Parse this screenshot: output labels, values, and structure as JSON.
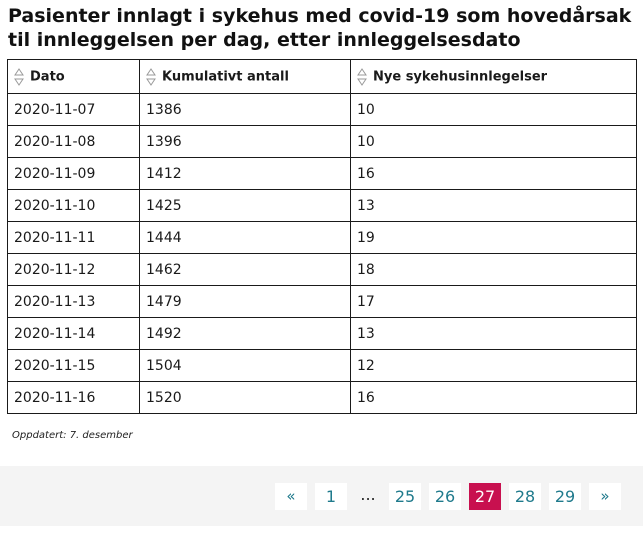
{
  "title": "Pasienter innlagt i sykehus med covid-19 som hovedårsak til innleggelsen per dag, etter innleggelsesdato",
  "table": {
    "headers": [
      "Dato",
      "Kumulativt antall",
      "Nye sykehusinnlegelser"
    ],
    "rows": [
      [
        "2020-11-07",
        "1386",
        "10"
      ],
      [
        "2020-11-08",
        "1396",
        "10"
      ],
      [
        "2020-11-09",
        "1412",
        "16"
      ],
      [
        "2020-11-10",
        "1425",
        "13"
      ],
      [
        "2020-11-11",
        "1444",
        "19"
      ],
      [
        "2020-11-12",
        "1462",
        "18"
      ],
      [
        "2020-11-13",
        "1479",
        "17"
      ],
      [
        "2020-11-14",
        "1492",
        "13"
      ],
      [
        "2020-11-15",
        "1504",
        "12"
      ],
      [
        "2020-11-16",
        "1520",
        "16"
      ]
    ]
  },
  "updated": "Oppdatert: 7. desember",
  "pagination": {
    "prev": "«",
    "first": "1",
    "ellipsis": "...",
    "pages": [
      "25",
      "26",
      "27",
      "28",
      "29"
    ],
    "current": "27",
    "next": "»"
  },
  "colors": {
    "accent": "#c8104f",
    "link": "#1f7a8c",
    "pager_background": "#f4f4f4"
  },
  "icons": {
    "sort": "sort-arrows-icon"
  }
}
